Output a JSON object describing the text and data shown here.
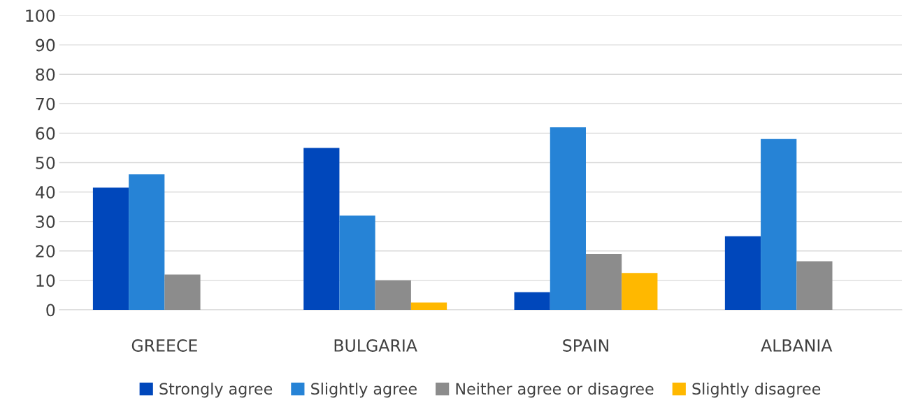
{
  "chart_data": {
    "type": "bar",
    "categories": [
      "GREECE",
      "BULGARIA",
      "SPAIN",
      "ALBANIA"
    ],
    "series": [
      {
        "name": "Strongly agree",
        "color": "#0047bb",
        "values": [
          41.5,
          55,
          6,
          25
        ]
      },
      {
        "name": "Slightly agree",
        "color": "#2683d6",
        "values": [
          46,
          32,
          62,
          58
        ]
      },
      {
        "name": "Neither agree or disagree",
        "color": "#8c8c8c",
        "values": [
          12,
          10,
          19,
          16.5
        ]
      },
      {
        "name": "Slightly disagree",
        "color": "#ffb800",
        "values": [
          0,
          2.5,
          12.5,
          0
        ]
      }
    ],
    "ylim": [
      0,
      100
    ],
    "yticks": [
      0,
      10,
      20,
      30,
      40,
      50,
      60,
      70,
      80,
      90,
      100
    ],
    "grid": "y",
    "legend": "bottom"
  }
}
